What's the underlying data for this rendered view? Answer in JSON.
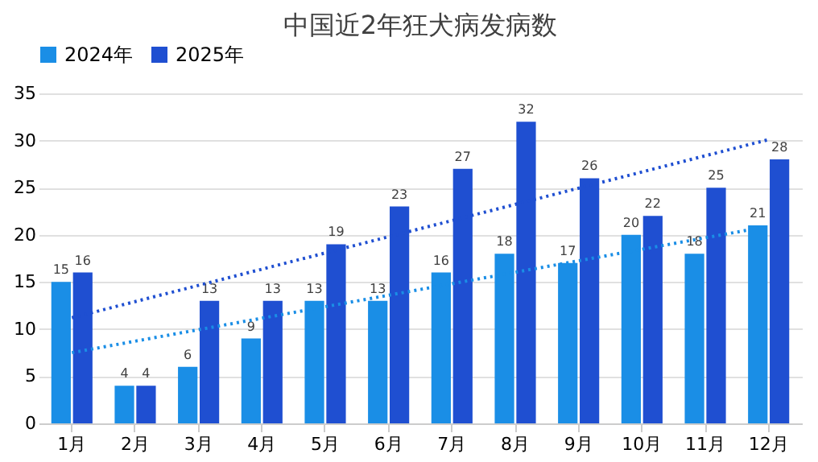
{
  "chart_data": {
    "type": "bar",
    "title": "中国近2年狂犬病发病数",
    "categories": [
      "1月",
      "2月",
      "3月",
      "4月",
      "5月",
      "6月",
      "7月",
      "8月",
      "9月",
      "10月",
      "11月",
      "12月"
    ],
    "series": [
      {
        "name": "2024年",
        "color": "#1a8ee6",
        "values": [
          15,
          4,
          6,
          9,
          13,
          13,
          16,
          18,
          17,
          20,
          18,
          21
        ],
        "value_labels": [
          "15",
          "4",
          "6",
          "9",
          "13",
          "13",
          "16",
          "18",
          "17",
          "20",
          "18",
          "21"
        ]
      },
      {
        "name": "2025年",
        "color": "#1f4fd1",
        "values": [
          16,
          4,
          13,
          13,
          19,
          23,
          27,
          32,
          26,
          22,
          25,
          28
        ],
        "value_labels": [
          "16",
          "4",
          "13",
          "13",
          "19",
          "23",
          "27",
          "32",
          "26",
          "22",
          "25",
          "28"
        ]
      },
      {
        "type": "line",
        "color": "#1a8ee6",
        "line_style": "dotted",
        "x": [
          "1月",
          "12月"
        ],
        "values": [
          7.5,
          20.9
        ]
      },
      {
        "type": "line",
        "color": "#1f4fd1",
        "line_style": "dotted",
        "x": [
          "1月",
          "12月"
        ],
        "values": [
          11.2,
          30.1
        ]
      }
    ],
    "ylim": [
      0,
      35
    ],
    "yticks": [
      0,
      5,
      10,
      15,
      20,
      25,
      30,
      35
    ],
    "grid": "y",
    "legend": "top"
  }
}
